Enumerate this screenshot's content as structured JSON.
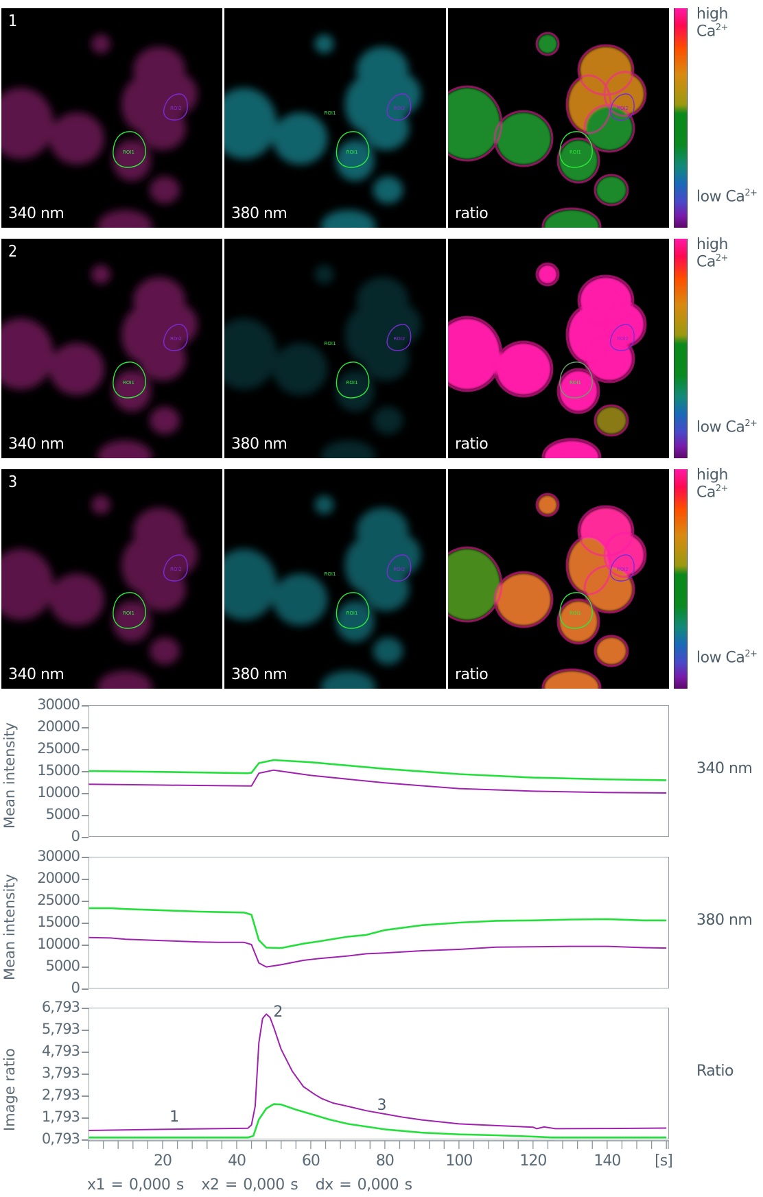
{
  "image_rows": [
    {
      "number": "1",
      "panels": [
        {
          "label": "340 nm",
          "channel": "340"
        },
        {
          "label": "380 nm",
          "channel": "380"
        },
        {
          "label": "ratio",
          "channel": "ratio"
        }
      ],
      "colorbar": {
        "high": "high Ca",
        "low": "low Ca",
        "sup": "2+"
      }
    },
    {
      "number": "2",
      "panels": [
        {
          "label": "340 nm",
          "channel": "340"
        },
        {
          "label": "380 nm",
          "channel": "380"
        },
        {
          "label": "ratio",
          "channel": "ratio"
        }
      ],
      "colorbar": {
        "high": "high Ca",
        "low": "low Ca",
        "sup": "2+"
      }
    },
    {
      "number": "3",
      "panels": [
        {
          "label": "340 nm",
          "channel": "340"
        },
        {
          "label": "380 nm",
          "channel": "380"
        },
        {
          "label": "ratio",
          "channel": "ratio"
        }
      ],
      "colorbar": {
        "high": "high Ca",
        "low": "low Ca",
        "sup": "2+"
      }
    }
  ],
  "roi_labels": {
    "roi1": "ROI1",
    "roi2": "ROI2"
  },
  "colors": {
    "roi1": "#22e03a",
    "roi2": "#a020b0",
    "roi2_outline": "#7a2ad8",
    "axis": "#9aa3aa",
    "text": "#4d5e6b",
    "magenta_cells": "#6a1a52",
    "cyan_cells": "#0e6a74"
  },
  "chart_data": [
    {
      "type": "line",
      "title": "340 nm",
      "ylabel": "Mean intensity",
      "xlabel": "[s]",
      "yticks": [
        "30000",
        "20000",
        "25000",
        "15000",
        "10000",
        "5000",
        "0"
      ],
      "ylim": [
        0,
        30000
      ],
      "xlim": [
        0,
        156
      ],
      "grid": false,
      "series": [
        {
          "name": "ROI1",
          "color": "#22e03a",
          "x": [
            0,
            20,
            43,
            44,
            46,
            50,
            60,
            80,
            100,
            120,
            140,
            156
          ],
          "y": [
            15000,
            14800,
            14500,
            14600,
            16800,
            17500,
            17000,
            15500,
            14300,
            13500,
            13100,
            12900
          ]
        },
        {
          "name": "ROI2",
          "color": "#a020b0",
          "x": [
            0,
            20,
            43,
            44,
            46,
            50,
            60,
            80,
            100,
            120,
            140,
            156
          ],
          "y": [
            12000,
            11800,
            11600,
            11600,
            14500,
            15200,
            14000,
            12300,
            11000,
            10400,
            10100,
            10000
          ]
        }
      ]
    },
    {
      "type": "line",
      "title": "380 nm",
      "ylabel": "Mean intensity",
      "xlabel": "[s]",
      "yticks": [
        "30000",
        "20000",
        "25000",
        "15000",
        "10000",
        "5000",
        "0"
      ],
      "ylim": [
        0,
        30000
      ],
      "xlim": [
        0,
        156
      ],
      "grid": false,
      "series": [
        {
          "name": "ROI1",
          "color": "#22e03a",
          "x": [
            0,
            6,
            10,
            20,
            30,
            35,
            42,
            44,
            46,
            48,
            52,
            58,
            62,
            70,
            75,
            80,
            90,
            100,
            110,
            120,
            130,
            140,
            150,
            156
          ],
          "y": [
            18300,
            18300,
            18100,
            17800,
            17500,
            17400,
            17300,
            16800,
            11000,
            9300,
            9200,
            10200,
            10700,
            11800,
            12200,
            13300,
            14400,
            15000,
            15400,
            15500,
            15700,
            15800,
            15500,
            15500
          ]
        },
        {
          "name": "ROI2",
          "color": "#a020b0",
          "x": [
            0,
            6,
            10,
            20,
            30,
            35,
            42,
            44,
            46,
            48,
            52,
            58,
            62,
            70,
            75,
            80,
            90,
            100,
            110,
            120,
            130,
            140,
            150,
            156
          ],
          "y": [
            11600,
            11500,
            11200,
            10900,
            10600,
            10500,
            10500,
            10000,
            5800,
            4900,
            5400,
            6400,
            6800,
            7400,
            7900,
            8100,
            8600,
            8900,
            9400,
            9500,
            9600,
            9600,
            9300,
            9200
          ]
        }
      ]
    },
    {
      "type": "line",
      "title": "Ratio",
      "ylabel": "Image ratio",
      "xlabel": "[s]",
      "yticks": [
        "6,793",
        "5,793",
        "4,793",
        "3,793",
        "2,793",
        "1,793",
        "0,793"
      ],
      "ylim": [
        0.793,
        6.793
      ],
      "xlim": [
        0,
        156
      ],
      "xticks": [
        "20",
        "40",
        "60",
        "80",
        "100",
        "120",
        "140",
        "[s]"
      ],
      "grid": false,
      "annotations": [
        {
          "text": "1",
          "x": 23,
          "y": 1.75
        },
        {
          "text": "2",
          "x": 51,
          "y": 6.55
        },
        {
          "text": "3",
          "x": 79,
          "y": 2.3
        }
      ],
      "series": [
        {
          "name": "ROI1",
          "color": "#22e03a",
          "x": [
            0,
            20,
            43,
            44.5,
            46,
            48,
            50,
            52,
            56,
            60,
            65,
            70,
            80,
            90,
            100,
            110,
            120,
            125,
            140,
            156
          ],
          "y": [
            0.88,
            0.88,
            0.88,
            0.95,
            1.7,
            2.2,
            2.4,
            2.38,
            2.15,
            1.95,
            1.7,
            1.5,
            1.25,
            1.1,
            1.02,
            0.98,
            0.92,
            0.88,
            0.88,
            0.88
          ]
        },
        {
          "name": "ROI2",
          "color": "#a020b0",
          "x": [
            0,
            20,
            43,
            44,
            45,
            46,
            47,
            48,
            49,
            50,
            52,
            55,
            58,
            61,
            63,
            66,
            70,
            75,
            80,
            85,
            90,
            100,
            110,
            120,
            121,
            123,
            126,
            140,
            156
          ],
          "y": [
            1.2,
            1.25,
            1.3,
            1.45,
            2.3,
            5.2,
            6.3,
            6.5,
            6.35,
            5.9,
            4.9,
            3.9,
            3.2,
            2.85,
            2.65,
            2.45,
            2.3,
            2.1,
            1.95,
            1.8,
            1.68,
            1.5,
            1.42,
            1.35,
            1.28,
            1.36,
            1.28,
            1.29,
            1.31
          ]
        }
      ]
    }
  ],
  "x_axis": {
    "labels": [
      {
        "text": "20",
        "x": 20
      },
      {
        "text": "40",
        "x": 40
      },
      {
        "text": "60",
        "x": 60
      },
      {
        "text": "80",
        "x": 80
      },
      {
        "text": "100",
        "x": 100
      },
      {
        "text": "120",
        "x": 120
      },
      {
        "text": "140",
        "x": 140
      }
    ],
    "unit": "[s]",
    "tick_step": 4
  },
  "footer": {
    "x1": "x1 = 0,000 s",
    "x2": "x2 = 0,000 s",
    "dx": "dx = 0,000 s"
  },
  "series_labels": [
    "340 nm",
    "380 nm",
    "Ratio"
  ]
}
